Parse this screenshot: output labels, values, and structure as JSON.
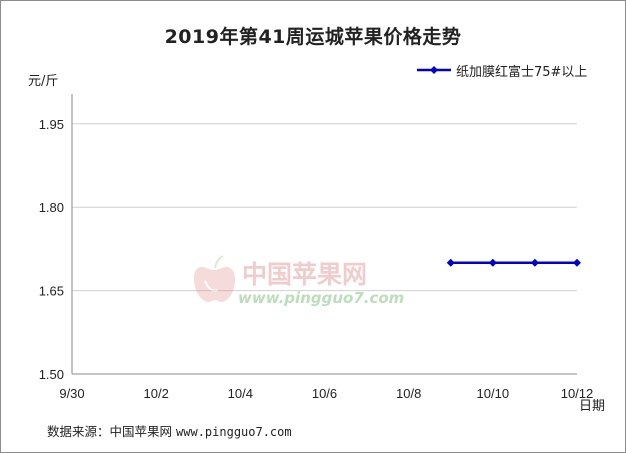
{
  "chart_data": {
    "type": "line",
    "title": "2019年第41周运城苹果价格走势",
    "ylabel": "元/斤",
    "xlabel": "日期",
    "categories": [
      "9/30",
      "10/1",
      "10/2",
      "10/3",
      "10/4",
      "10/5",
      "10/6",
      "10/7",
      "10/8",
      "10/9",
      "10/10",
      "10/11",
      "10/12"
    ],
    "x_tick_labels": [
      "9/30",
      "10/2",
      "10/4",
      "10/6",
      "10/8",
      "10/10",
      "10/12"
    ],
    "y_ticks": [
      "1.50",
      "1.65",
      "1.80",
      "1.95"
    ],
    "ylim": [
      1.5,
      2.0
    ],
    "grid": "horizontal",
    "legend_position": "top-right",
    "series": [
      {
        "name": "纸加膜红富士75#以上",
        "color": "#0000cc",
        "values": [
          null,
          null,
          null,
          null,
          null,
          null,
          null,
          null,
          null,
          1.7,
          1.7,
          1.7,
          1.7
        ]
      }
    ]
  },
  "watermark": {
    "text": "中国苹果网",
    "url": "www.pingguo7.com"
  },
  "source": {
    "label": "数据来源：",
    "name": "中国苹果网",
    "url": "www.pingguo7.com"
  }
}
